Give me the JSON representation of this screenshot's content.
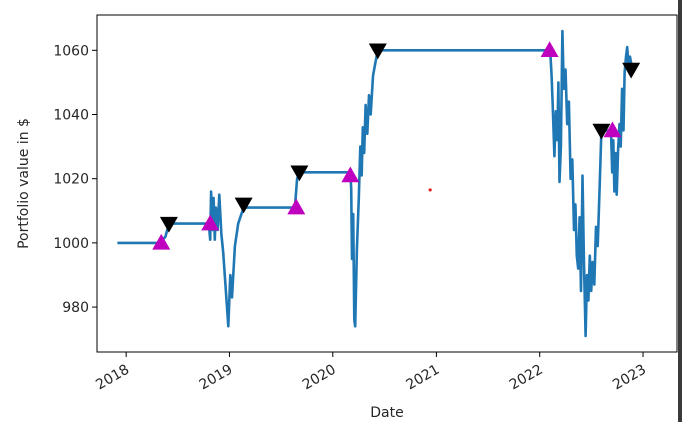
{
  "chart_data": {
    "type": "line",
    "title": "",
    "xlabel": "Date",
    "ylabel": "Portfolio value in $",
    "grid": false,
    "legend": "none",
    "x_ticks": [
      "2018",
      "2019",
      "2020",
      "2021",
      "2022",
      "2023"
    ],
    "y_ticks": [
      980,
      1000,
      1020,
      1040,
      1060
    ],
    "xlim": [
      "2017-09-20",
      "2023-05-01"
    ],
    "ylim": [
      966,
      1071
    ],
    "colors": {
      "line": "#1f77b4",
      "buy_marker": "#bf00bf",
      "sell_marker": "#000000",
      "stray_point": "#e31a1c"
    },
    "series": [
      {
        "points": [
          [
            "2017-12-01",
            1000
          ],
          [
            "2018-05-01",
            1000
          ],
          [
            "2018-05-20",
            1002
          ],
          [
            "2018-06-01",
            1006
          ],
          [
            "2018-10-20",
            1006
          ],
          [
            "2018-10-25",
            1001
          ],
          [
            "2018-10-28",
            1016
          ],
          [
            "2018-11-02",
            1004
          ],
          [
            "2018-11-06",
            1014
          ],
          [
            "2018-11-10",
            1001
          ],
          [
            "2018-11-14",
            1011
          ],
          [
            "2018-11-20",
            1004
          ],
          [
            "2018-11-26",
            1015
          ],
          [
            "2018-12-03",
            1003
          ],
          [
            "2018-12-10",
            997
          ],
          [
            "2018-12-20",
            984
          ],
          [
            "2018-12-28",
            974
          ],
          [
            "2019-01-04",
            990
          ],
          [
            "2019-01-10",
            983
          ],
          [
            "2019-01-20",
            999
          ],
          [
            "2019-02-01",
            1006
          ],
          [
            "2019-02-20",
            1011
          ],
          [
            "2019-08-20",
            1011
          ],
          [
            "2019-08-28",
            1020
          ],
          [
            "2019-09-05",
            1022
          ],
          [
            "2020-03-03",
            1022
          ],
          [
            "2020-03-06",
            1017
          ],
          [
            "2020-03-09",
            995
          ],
          [
            "2020-03-13",
            1009
          ],
          [
            "2020-03-17",
            976
          ],
          [
            "2020-03-20",
            974
          ],
          [
            "2020-03-26",
            998
          ],
          [
            "2020-04-02",
            1014
          ],
          [
            "2020-04-07",
            1030
          ],
          [
            "2020-04-12",
            1021
          ],
          [
            "2020-04-16",
            1036
          ],
          [
            "2020-04-21",
            1028
          ],
          [
            "2020-04-26",
            1043
          ],
          [
            "2020-05-02",
            1034
          ],
          [
            "2020-05-08",
            1046
          ],
          [
            "2020-05-14",
            1040
          ],
          [
            "2020-05-22",
            1052
          ],
          [
            "2020-05-30",
            1056
          ],
          [
            "2020-06-08",
            1060
          ],
          [
            "2022-02-07",
            1060
          ],
          [
            "2022-02-12",
            1052
          ],
          [
            "2022-02-16",
            1043
          ],
          [
            "2022-02-22",
            1027
          ],
          [
            "2022-02-27",
            1041
          ],
          [
            "2022-03-04",
            1032
          ],
          [
            "2022-03-08",
            1050
          ],
          [
            "2022-03-12",
            1019
          ],
          [
            "2022-03-17",
            1030
          ],
          [
            "2022-03-22",
            1066
          ],
          [
            "2022-03-27",
            1048
          ],
          [
            "2022-04-02",
            1054
          ],
          [
            "2022-04-08",
            1037
          ],
          [
            "2022-04-14",
            1044
          ],
          [
            "2022-04-20",
            1020
          ],
          [
            "2022-04-26",
            1026
          ],
          [
            "2022-05-02",
            1004
          ],
          [
            "2022-05-07",
            1012
          ],
          [
            "2022-05-12",
            996
          ],
          [
            "2022-05-17",
            992
          ],
          [
            "2022-05-22",
            1008
          ],
          [
            "2022-05-27",
            985
          ],
          [
            "2022-06-01",
            1021
          ],
          [
            "2022-06-06",
            995
          ],
          [
            "2022-06-12",
            971
          ],
          [
            "2022-06-17",
            990
          ],
          [
            "2022-06-22",
            982
          ],
          [
            "2022-06-27",
            996
          ],
          [
            "2022-07-02",
            985
          ],
          [
            "2022-07-07",
            994
          ],
          [
            "2022-07-13",
            987
          ],
          [
            "2022-07-19",
            1005
          ],
          [
            "2022-07-25",
            999
          ],
          [
            "2022-08-01",
            1018
          ],
          [
            "2022-08-07",
            1035
          ],
          [
            "2022-09-10",
            1035
          ],
          [
            "2022-09-14",
            1022
          ],
          [
            "2022-09-18",
            1032
          ],
          [
            "2022-09-22",
            1016
          ],
          [
            "2022-09-26",
            1028
          ],
          [
            "2022-09-30",
            1015
          ],
          [
            "2022-10-05",
            1029
          ],
          [
            "2022-10-10",
            1037
          ],
          [
            "2022-10-14",
            1030
          ],
          [
            "2022-10-19",
            1048
          ],
          [
            "2022-10-24",
            1035
          ],
          [
            "2022-10-28",
            1053
          ],
          [
            "2022-11-02",
            1058
          ],
          [
            "2022-11-06",
            1061
          ],
          [
            "2022-11-11",
            1055
          ],
          [
            "2022-11-16",
            1058
          ],
          [
            "2022-11-20",
            1056
          ]
        ]
      }
    ],
    "buy_markers": [
      [
        "2018-05-05",
        1000
      ],
      [
        "2018-10-25",
        1006
      ],
      [
        "2019-08-25",
        1011
      ],
      [
        "2020-03-03",
        1021
      ],
      [
        "2022-02-05",
        1060
      ],
      [
        "2022-09-15",
        1035
      ]
    ],
    "sell_markers": [
      [
        "2018-06-01",
        1006
      ],
      [
        "2019-02-20",
        1012
      ],
      [
        "2019-09-05",
        1022
      ],
      [
        "2020-06-08",
        1060
      ],
      [
        "2022-08-07",
        1035
      ],
      [
        "2022-11-20",
        1054
      ]
    ],
    "stray_point": [
      "2020-12-10",
      1016.5
    ]
  }
}
